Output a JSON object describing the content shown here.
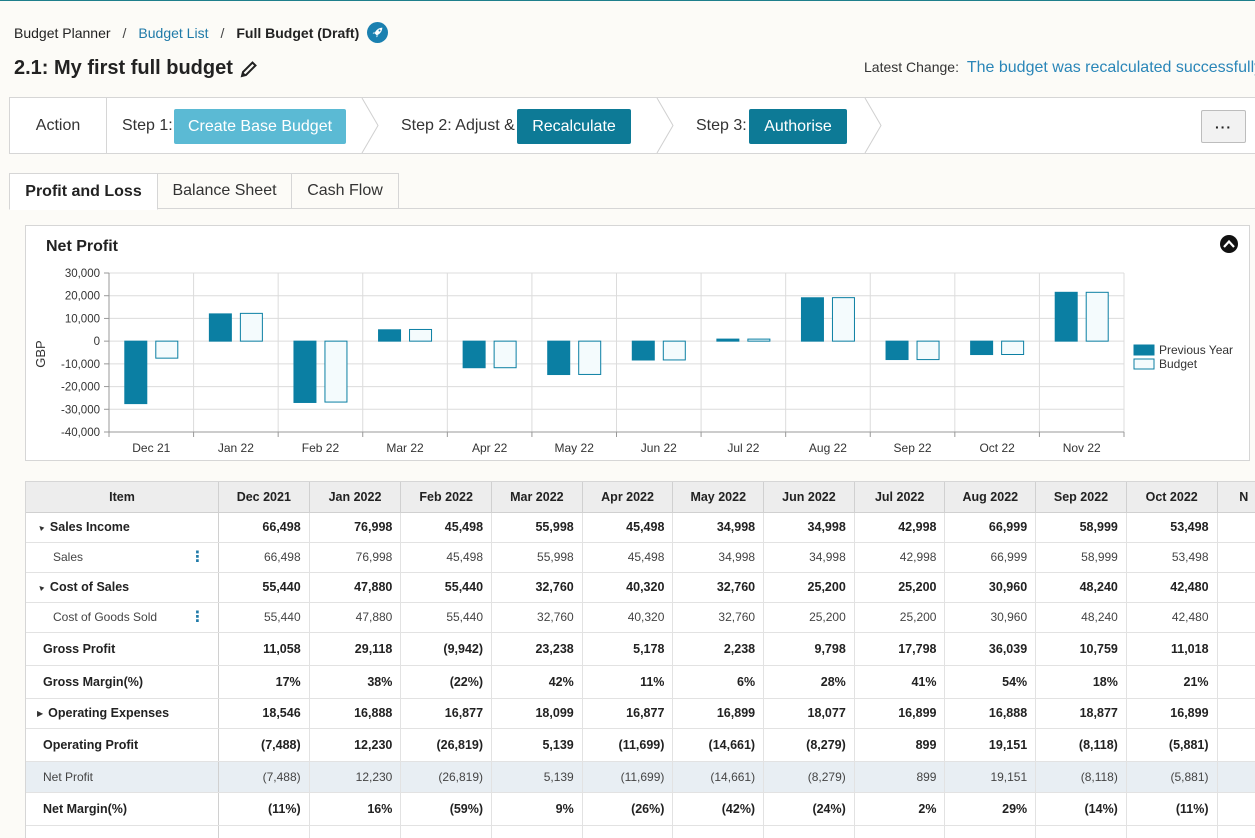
{
  "breadcrumb": {
    "root": "Budget Planner",
    "sep1": "/",
    "list": "Budget List",
    "sep2": "/",
    "current": "Full Budget (Draft)"
  },
  "title": "2.1: My first full budget",
  "latest": {
    "label": "Latest Change:",
    "message": "The budget was recalculated successfully"
  },
  "steps": {
    "action": "Action",
    "step1_label": "Step 1:",
    "step1_button": "Create Base Budget",
    "step2_label": "Step 2: Adjust &",
    "step2_button": "Recalculate",
    "step3_label": "Step 3:",
    "step3_button": "Authorise",
    "more": "···"
  },
  "tabs": [
    "Profit and Loss",
    "Balance Sheet",
    "Cash Flow"
  ],
  "colors": {
    "accent": "#0d7a96",
    "accent_light": "#5bbad4",
    "link": "#1f7aa8",
    "bar": "#0b7fa3"
  },
  "chart_data": {
    "type": "bar",
    "title": "Net Profit",
    "ylabel": "GBP",
    "xlabel": "",
    "categories": [
      "Dec 21",
      "Jan 22",
      "Feb 22",
      "Mar 22",
      "Apr 22",
      "May 22",
      "Jun 22",
      "Jul 22",
      "Aug 22",
      "Sep 22",
      "Oct 22",
      "Nov 22"
    ],
    "series": [
      {
        "name": "Previous Year",
        "values": [
          -27500,
          12000,
          -27000,
          5000,
          -11700,
          -14700,
          -8300,
          900,
          19100,
          -8100,
          -5900,
          21500
        ]
      },
      {
        "name": "Budget",
        "values": [
          -7488,
          12230,
          -26819,
          5139,
          -11699,
          -14661,
          -8279,
          899,
          19151,
          -8118,
          -5881,
          21500
        ]
      }
    ],
    "ylim": [
      -40000,
      30000
    ],
    "yticks": [
      30000,
      20000,
      10000,
      0,
      -10000,
      -20000,
      -30000,
      -40000
    ],
    "ytick_labels": [
      "30,000",
      "20,000",
      "10,000",
      "0",
      "-10,000",
      "-20,000",
      "-30,000",
      "-40,000"
    ],
    "legend": "right",
    "grid": true
  },
  "table": {
    "columns": [
      "Item",
      "Dec 2021",
      "Jan 2022",
      "Feb 2022",
      "Mar 2022",
      "Apr 2022",
      "May 2022",
      "Jun 2022",
      "Jul 2022",
      "Aug 2022",
      "Sep 2022",
      "Oct 2022",
      "N"
    ],
    "rows": [
      {
        "kind": "grp",
        "caret": "▲",
        "label": "Sales Income",
        "values": [
          "66,498",
          "76,998",
          "45,498",
          "55,998",
          "45,498",
          "34,998",
          "34,998",
          "42,998",
          "66,999",
          "58,999",
          "53,498",
          ""
        ]
      },
      {
        "kind": "sub",
        "label": "Sales",
        "menu": true,
        "values": [
          "66,498",
          "76,998",
          "45,498",
          "55,998",
          "45,498",
          "34,998",
          "34,998",
          "42,998",
          "66,999",
          "58,999",
          "53,498",
          ""
        ]
      },
      {
        "kind": "grp",
        "caret": "▲",
        "label": "Cost of Sales",
        "values": [
          "55,440",
          "47,880",
          "55,440",
          "32,760",
          "40,320",
          "32,760",
          "25,200",
          "25,200",
          "30,960",
          "48,240",
          "42,480",
          ""
        ]
      },
      {
        "kind": "sub",
        "label": "Cost of Goods Sold",
        "menu": true,
        "values": [
          "55,440",
          "47,880",
          "55,440",
          "32,760",
          "40,320",
          "32,760",
          "25,200",
          "25,200",
          "30,960",
          "48,240",
          "42,480",
          ""
        ]
      },
      {
        "kind": "total",
        "label": "Gross Profit",
        "values": [
          "11,058",
          "29,118",
          "(9,942)",
          "23,238",
          "5,178",
          "2,238",
          "9,798",
          "17,798",
          "36,039",
          "10,759",
          "11,018",
          ""
        ]
      },
      {
        "kind": "total",
        "label": "Gross Margin(%)",
        "values": [
          "17%",
          "38%",
          "(22%)",
          "42%",
          "11%",
          "6%",
          "28%",
          "41%",
          "54%",
          "18%",
          "21%",
          ""
        ]
      },
      {
        "kind": "grp",
        "caret": "▶",
        "label": "Operating Expenses",
        "values": [
          "18,546",
          "16,888",
          "16,877",
          "18,099",
          "16,877",
          "16,899",
          "18,077",
          "16,899",
          "16,888",
          "18,877",
          "16,899",
          ""
        ]
      },
      {
        "kind": "total",
        "label": "Operating Profit",
        "values": [
          "(7,488)",
          "12,230",
          "(26,819)",
          "5,139",
          "(11,699)",
          "(14,661)",
          "(8,279)",
          "899",
          "19,151",
          "(8,118)",
          "(5,881)",
          ""
        ]
      },
      {
        "kind": "net",
        "label": "Net Profit",
        "values": [
          "(7,488)",
          "12,230",
          "(26,819)",
          "5,139",
          "(11,699)",
          "(14,661)",
          "(8,279)",
          "899",
          "19,151",
          "(8,118)",
          "(5,881)",
          ""
        ]
      },
      {
        "kind": "total",
        "label": "Net Margin(%)",
        "values": [
          "(11%)",
          "16%",
          "(59%)",
          "9%",
          "(26%)",
          "(42%)",
          "(24%)",
          "2%",
          "29%",
          "(14%)",
          "(11%)",
          ""
        ]
      }
    ]
  }
}
